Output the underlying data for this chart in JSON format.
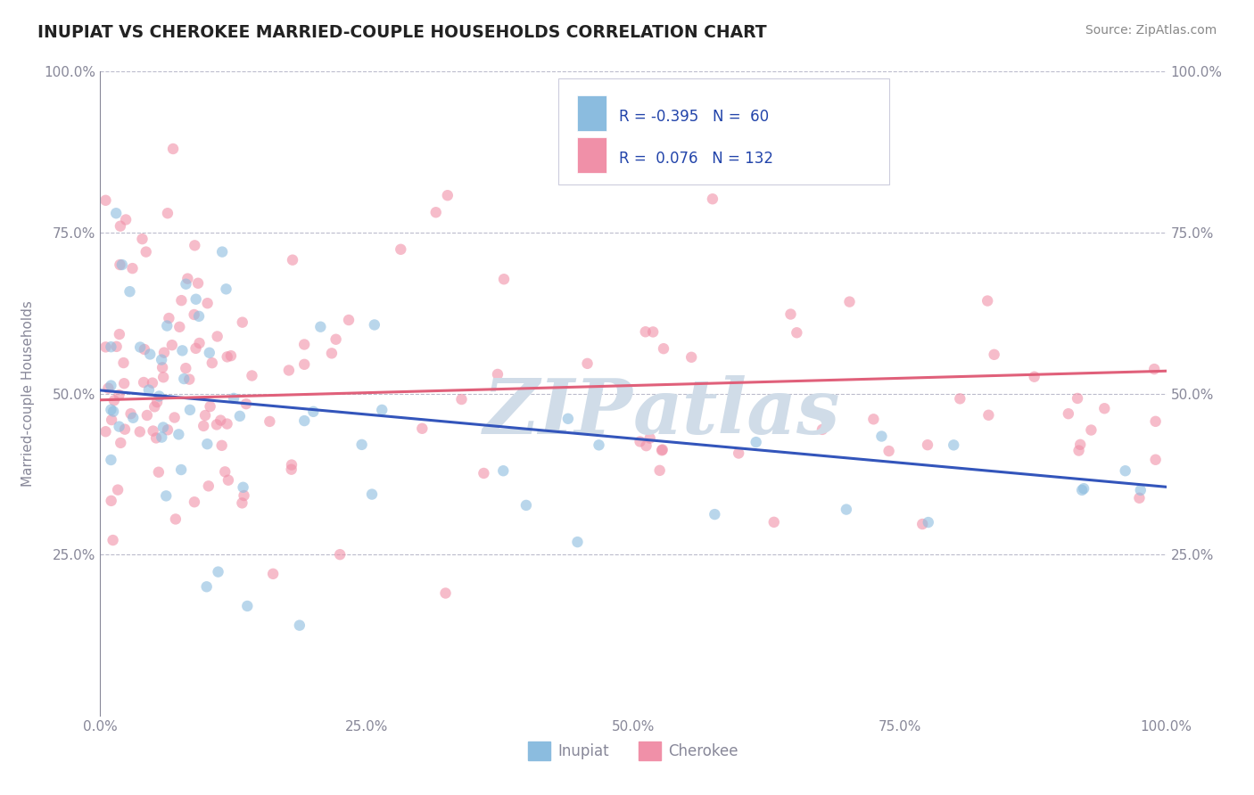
{
  "title": "INUPIAT VS CHEROKEE MARRIED-COUPLE HOUSEHOLDS CORRELATION CHART",
  "source": "Source: ZipAtlas.com",
  "ylabel": "Married-couple Households",
  "watermark": "ZIPAtlas",
  "inupiat_color": "#8bbcdf",
  "cherokee_color": "#f090a8",
  "inupiat_line_color": "#3355bb",
  "cherokee_line_color": "#e0607a",
  "scatter_alpha": 0.6,
  "scatter_size": 80,
  "background_color": "#ffffff",
  "grid_color": "#bbbbcc",
  "axis_color": "#888899",
  "title_color": "#222222",
  "source_color": "#888888",
  "watermark_color": "#d0dce8",
  "xlim": [
    0.0,
    1.0
  ],
  "ylim": [
    0.0,
    1.0
  ],
  "xticks": [
    0.0,
    0.25,
    0.5,
    0.75,
    1.0
  ],
  "yticks": [
    0.25,
    0.5,
    0.75,
    1.0
  ],
  "xticklabels": [
    "0.0%",
    "25.0%",
    "50.0%",
    "75.0%",
    "100.0%"
  ],
  "yticklabels": [
    "25.0%",
    "50.0%",
    "75.0%",
    "100.0%"
  ],
  "right_yticklabels": [
    "25.0%",
    "50.0%",
    "75.0%",
    "100.0%"
  ],
  "legend_labels": [
    "Inupiat",
    "Cherokee"
  ],
  "inupiat_R": -0.395,
  "inupiat_N": 60,
  "cherokee_R": 0.076,
  "cherokee_N": 132,
  "inupiat_line_start_y": 0.505,
  "inupiat_line_end_y": 0.355,
  "cherokee_line_start_y": 0.49,
  "cherokee_line_end_y": 0.535
}
